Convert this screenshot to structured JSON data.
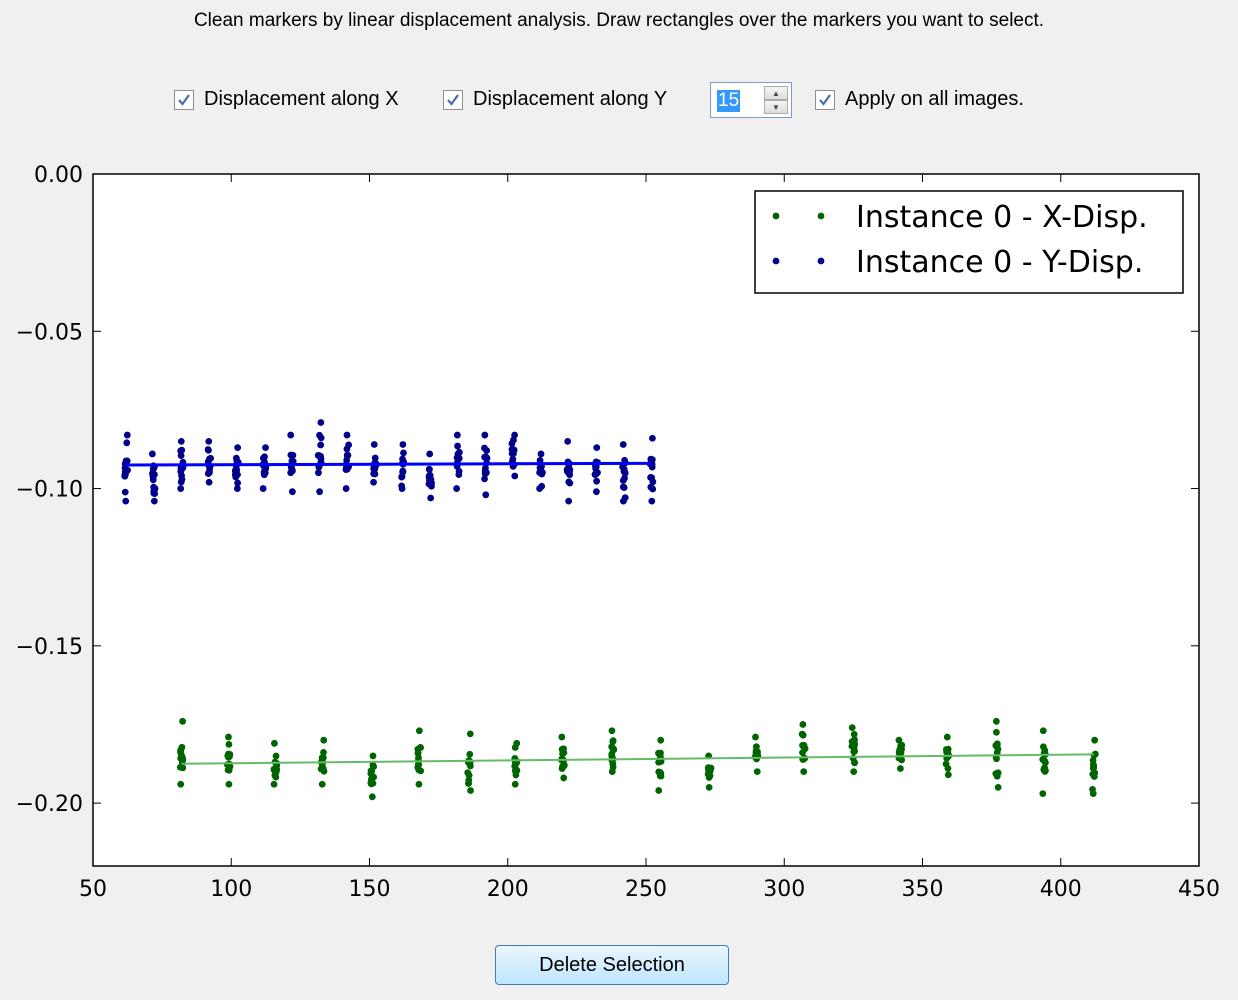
{
  "instruction": "Clean markers by linear displacement analysis. Draw rectangles over the markers you want to select.",
  "controls": {
    "disp_x": {
      "label": "Displacement along X",
      "checked": true
    },
    "disp_y": {
      "label": "Displacement along Y",
      "checked": true
    },
    "spin_value": "15",
    "apply_all": {
      "label": "Apply on all images.",
      "checked": true
    }
  },
  "delete_button": "Delete Selection",
  "colors": {
    "x_series": "#006400",
    "y_series": "#00008b",
    "x_line": "#66bb66",
    "y_line": "#0000ff"
  },
  "chart_data": {
    "type": "scatter",
    "xlim": [
      50,
      450
    ],
    "ylim": [
      -0.22,
      0.0
    ],
    "xticks": [
      "50",
      "100",
      "150",
      "200",
      "250",
      "300",
      "350",
      "400",
      "450"
    ],
    "yticks": [
      "0.00",
      "−0.05",
      "−0.10",
      "−0.15",
      "−0.20"
    ],
    "legend_position": "top-right",
    "series": [
      {
        "name": "Instance 0 - X-Disp.",
        "color": "#006400",
        "x": [
          82,
          99,
          116,
          133,
          151,
          168,
          186,
          203,
          220,
          238,
          255,
          273,
          290,
          307,
          325,
          342,
          359,
          377,
          394,
          412
        ],
        "y_min": [
          -0.194,
          -0.194,
          -0.194,
          -0.194,
          -0.198,
          -0.194,
          -0.196,
          -0.194,
          -0.192,
          -0.19,
          -0.196,
          -0.195,
          -0.19,
          -0.19,
          -0.19,
          -0.189,
          -0.191,
          -0.195,
          -0.197,
          -0.197
        ],
        "y_max": [
          -0.174,
          -0.179,
          -0.181,
          -0.18,
          -0.185,
          -0.177,
          -0.178,
          -0.181,
          -0.179,
          -0.177,
          -0.18,
          -0.185,
          -0.179,
          -0.175,
          -0.176,
          -0.18,
          -0.179,
          -0.174,
          -0.177,
          -0.18
        ],
        "trend": [
          [
            82,
            -0.1875
          ],
          [
            412,
            -0.1845
          ]
        ]
      },
      {
        "name": "Instance 0 - Y-Disp.",
        "color": "#00008b",
        "x": [
          62,
          72,
          82,
          92,
          102,
          112,
          122,
          132,
          142,
          152,
          162,
          172,
          182,
          192,
          202,
          212,
          222,
          232,
          242,
          252
        ],
        "y_min": [
          -0.104,
          -0.104,
          -0.1,
          -0.098,
          -0.1,
          -0.1,
          -0.101,
          -0.101,
          -0.1,
          -0.098,
          -0.1,
          -0.103,
          -0.1,
          -0.102,
          -0.096,
          -0.1,
          -0.104,
          -0.101,
          -0.104,
          -0.104
        ],
        "y_max": [
          -0.083,
          -0.089,
          -0.085,
          -0.085,
          -0.087,
          -0.087,
          -0.083,
          -0.079,
          -0.083,
          -0.086,
          -0.086,
          -0.089,
          -0.083,
          -0.083,
          -0.083,
          -0.089,
          -0.085,
          -0.087,
          -0.086,
          -0.084
        ],
        "trend": [
          [
            62,
            -0.0925
          ],
          [
            252,
            -0.092
          ]
        ]
      }
    ]
  }
}
